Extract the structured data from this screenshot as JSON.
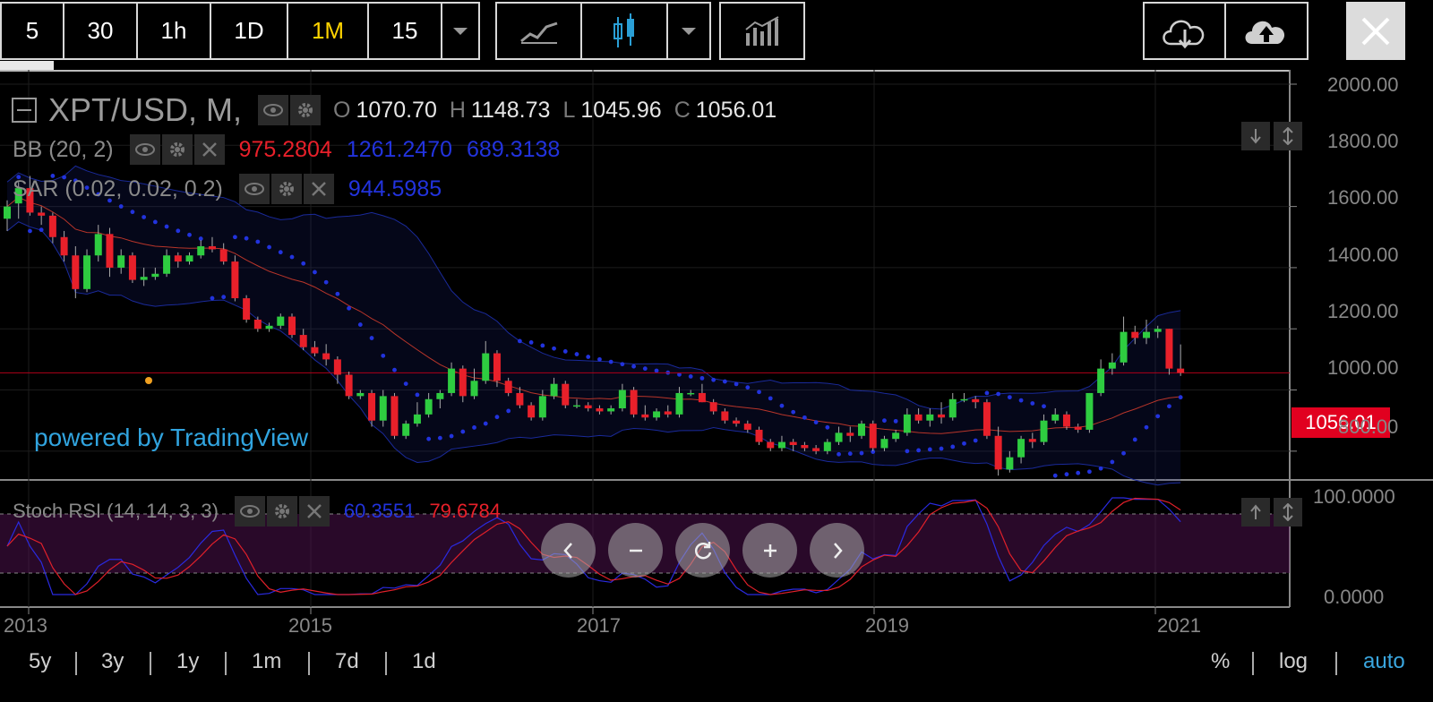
{
  "toolbar": {
    "intervals": [
      "5",
      "30",
      "1h",
      "1D",
      "1M",
      "15"
    ],
    "active_interval": "1M",
    "chart_types": [
      "line-chart-icon",
      "candlestick-chart-icon"
    ],
    "active_chart_type": "candlestick-chart-icon",
    "indicators_icon": "indicators-icon",
    "download_icon": "cloud-download-icon",
    "upload_icon": "cloud-upload-icon",
    "close_icon": "close-icon"
  },
  "main_legend": {
    "symbol": "XPT/USD, M,",
    "open_key": "O",
    "open": "1070.70",
    "high_key": "H",
    "high": "1148.73",
    "low_key": "L",
    "low": "1045.96",
    "close_key": "C",
    "close": "1056.01"
  },
  "bb_legend": {
    "name": "BB (20, 2)",
    "v1": "975.2804",
    "v2": "1261.2470",
    "v3": "689.3138"
  },
  "sar_legend": {
    "name": "SAR (0.02, 0.02, 0.2)",
    "v1": "944.5985"
  },
  "stoch_legend": {
    "name": "Stoch RSI (14, 14, 3, 3)",
    "k": "60.3551",
    "d": "79.6784"
  },
  "watermark": "powered by TradingView",
  "last_price": "1056.01",
  "price_axis": [
    "2000.00",
    "1800.00",
    "1600.00",
    "1400.00",
    "1200.00",
    "1000.00",
    "800.00"
  ],
  "stoch_axis": [
    "100.0000",
    "0.0000"
  ],
  "time_axis": [
    "2013",
    "2015",
    "2017",
    "2019",
    "2021"
  ],
  "ranges": [
    "5y",
    "3y",
    "1y",
    "1m",
    "7d",
    "1d"
  ],
  "scales": [
    "%",
    "log",
    "auto"
  ],
  "active_scale": "auto",
  "colors": {
    "up": "#2ecc40",
    "down": "#e8202a",
    "bb_mid": "#b8352a",
    "bb_band": "#1a2a9a",
    "sar_dot": "#2233dd",
    "stoch_k": "#2a2ae0",
    "stoch_d": "#e0202a",
    "accent": "#ffd400",
    "link": "#31a4df"
  },
  "chart_data": {
    "type": "candlestick",
    "symbol": "XPT/USD",
    "interval": "M",
    "ylim": [
      700,
      2000
    ],
    "x_start": "2012-12",
    "last_candle": {
      "open": 1070.7,
      "high": 1148.73,
      "low": 1045.96,
      "close": 1056.01
    },
    "candles": [
      [
        1560,
        1620,
        1520,
        1600
      ],
      [
        1610,
        1680,
        1560,
        1660
      ],
      [
        1660,
        1700,
        1570,
        1580
      ],
      [
        1580,
        1600,
        1540,
        1570
      ],
      [
        1570,
        1580,
        1480,
        1500
      ],
      [
        1500,
        1520,
        1420,
        1440
      ],
      [
        1440,
        1470,
        1300,
        1330
      ],
      [
        1330,
        1460,
        1320,
        1440
      ],
      [
        1440,
        1540,
        1420,
        1510
      ],
      [
        1510,
        1530,
        1370,
        1400
      ],
      [
        1400,
        1460,
        1380,
        1440
      ],
      [
        1440,
        1450,
        1350,
        1360
      ],
      [
        1360,
        1400,
        1340,
        1370
      ],
      [
        1370,
        1400,
        1360,
        1380
      ],
      [
        1380,
        1460,
        1370,
        1440
      ],
      [
        1440,
        1450,
        1400,
        1420
      ],
      [
        1420,
        1450,
        1410,
        1440
      ],
      [
        1440,
        1490,
        1430,
        1470
      ],
      [
        1470,
        1500,
        1450,
        1460
      ],
      [
        1460,
        1480,
        1410,
        1420
      ],
      [
        1420,
        1440,
        1290,
        1300
      ],
      [
        1300,
        1310,
        1220,
        1230
      ],
      [
        1230,
        1240,
        1190,
        1200
      ],
      [
        1200,
        1220,
        1190,
        1210
      ],
      [
        1210,
        1250,
        1200,
        1240
      ],
      [
        1240,
        1250,
        1170,
        1180
      ],
      [
        1180,
        1200,
        1130,
        1140
      ],
      [
        1140,
        1160,
        1110,
        1120
      ],
      [
        1120,
        1150,
        1080,
        1100
      ],
      [
        1100,
        1110,
        1020,
        1050
      ],
      [
        1050,
        1060,
        970,
        980
      ],
      [
        980,
        1000,
        970,
        990
      ],
      [
        990,
        1000,
        880,
        900
      ],
      [
        900,
        1000,
        880,
        980
      ],
      [
        980,
        990,
        840,
        850
      ],
      [
        850,
        900,
        840,
        890
      ],
      [
        890,
        960,
        880,
        920
      ],
      [
        920,
        990,
        910,
        970
      ],
      [
        970,
        1000,
        940,
        990
      ],
      [
        990,
        1090,
        980,
        1070
      ],
      [
        1070,
        1080,
        960,
        980
      ],
      [
        980,
        1070,
        970,
        1030
      ],
      [
        1030,
        1160,
        1020,
        1120
      ],
      [
        1120,
        1130,
        1010,
        1030
      ],
      [
        1030,
        1040,
        980,
        990
      ],
      [
        990,
        1010,
        940,
        950
      ],
      [
        950,
        960,
        900,
        910
      ],
      [
        910,
        1000,
        900,
        980
      ],
      [
        980,
        1040,
        970,
        1020
      ],
      [
        1020,
        1030,
        940,
        950
      ],
      [
        950,
        970,
        940,
        950
      ],
      [
        950,
        960,
        930,
        940
      ],
      [
        940,
        950,
        920,
        930
      ],
      [
        930,
        950,
        920,
        940
      ],
      [
        940,
        1020,
        930,
        1000
      ],
      [
        1000,
        1010,
        910,
        920
      ],
      [
        920,
        950,
        900,
        910
      ],
      [
        910,
        940,
        900,
        930
      ],
      [
        930,
        950,
        910,
        920
      ],
      [
        920,
        1010,
        910,
        990
      ],
      [
        990,
        1000,
        980,
        990
      ],
      [
        990,
        1020,
        960,
        960
      ],
      [
        960,
        970,
        920,
        930
      ],
      [
        930,
        940,
        890,
        900
      ],
      [
        900,
        910,
        880,
        890
      ],
      [
        890,
        900,
        860,
        870
      ],
      [
        870,
        880,
        820,
        830
      ],
      [
        830,
        840,
        800,
        810
      ],
      [
        810,
        850,
        800,
        830
      ],
      [
        830,
        840,
        800,
        820
      ],
      [
        820,
        830,
        800,
        810
      ],
      [
        810,
        820,
        790,
        800
      ],
      [
        800,
        840,
        790,
        830
      ],
      [
        830,
        880,
        820,
        860
      ],
      [
        860,
        880,
        830,
        850
      ],
      [
        850,
        900,
        840,
        890
      ],
      [
        890,
        900,
        800,
        810
      ],
      [
        810,
        850,
        800,
        840
      ],
      [
        840,
        870,
        830,
        860
      ],
      [
        860,
        940,
        850,
        920
      ],
      [
        920,
        940,
        890,
        900
      ],
      [
        900,
        940,
        880,
        920
      ],
      [
        920,
        960,
        890,
        910
      ],
      [
        910,
        990,
        900,
        970
      ],
      [
        970,
        990,
        960,
        970
      ],
      [
        970,
        980,
        940,
        960
      ],
      [
        960,
        970,
        840,
        850
      ],
      [
        850,
        880,
        720,
        740
      ],
      [
        740,
        800,
        730,
        780
      ],
      [
        780,
        850,
        760,
        840
      ],
      [
        840,
        860,
        810,
        830
      ],
      [
        830,
        920,
        820,
        900
      ],
      [
        900,
        940,
        890,
        920
      ],
      [
        920,
        930,
        870,
        880
      ],
      [
        880,
        890,
        860,
        870
      ],
      [
        870,
        990,
        860,
        990
      ],
      [
        990,
        1100,
        980,
        1070
      ],
      [
        1070,
        1120,
        1050,
        1090
      ],
      [
        1090,
        1240,
        1080,
        1190
      ],
      [
        1190,
        1210,
        1150,
        1170
      ],
      [
        1170,
        1230,
        1150,
        1190
      ],
      [
        1190,
        1210,
        1170,
        1200
      ],
      [
        1200,
        1200,
        1050,
        1070
      ],
      [
        1070,
        1149,
        1046,
        1056
      ]
    ]
  }
}
